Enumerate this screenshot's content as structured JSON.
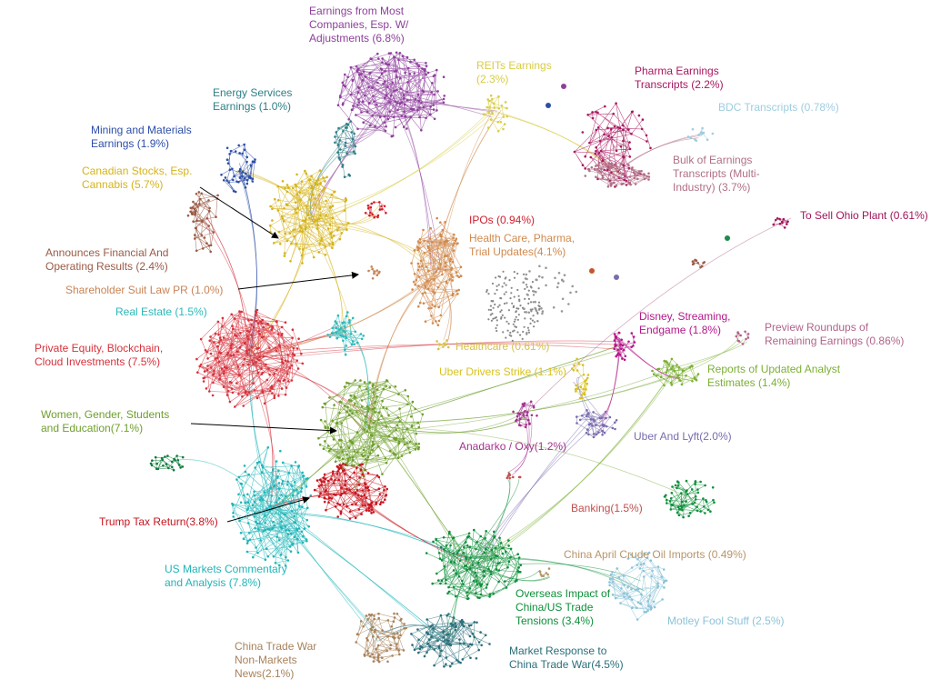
{
  "clusters": [
    {
      "id": "earnings-most",
      "label": [
        "Earnings from Most",
        "Companies, Esp. W/",
        "Adjustments (6.8%)"
      ],
      "color": "#8e3f9c"
    },
    {
      "id": "reits",
      "label": [
        "REITs Earnings",
        "(2.3%)"
      ],
      "color": "#d9cc45"
    },
    {
      "id": "pharma-earnings",
      "label": [
        "Pharma Earnings",
        "Transcripts (2.2%)"
      ],
      "color": "#a8175f"
    },
    {
      "id": "bdc",
      "label": [
        "BDC Transcripts (0.78%)"
      ],
      "color": "#9fcde0"
    },
    {
      "id": "energy",
      "label": [
        "Energy Services",
        "Earnings (1.0%)"
      ],
      "color": "#2f7f86"
    },
    {
      "id": "mining",
      "label": [
        "Mining and Materials",
        "Earnings (1.9%)"
      ],
      "color": "#2d4ea8"
    },
    {
      "id": "bulk-transcripts",
      "label": [
        "Bulk of Earnings",
        "Transcripts (Multi-",
        "Industry) (3.7%)"
      ],
      "color": "#b06f86"
    },
    {
      "id": "canadian",
      "label": [
        "Canadian Stocks, Esp.",
        "Cannabis (5.7%)"
      ],
      "color": "#d6b31a"
    },
    {
      "id": "ohio",
      "label": [
        "To Sell Ohio Plant (0.61%)"
      ],
      "color": "#a0155a"
    },
    {
      "id": "ipos",
      "label": [
        "IPOs (0.94%)"
      ],
      "color": "#d01e2c"
    },
    {
      "id": "health-care",
      "label": [
        "Health Care, Pharma,",
        "Trial Updates(4.1%)"
      ],
      "color": "#d08a4e"
    },
    {
      "id": "announces",
      "label": [
        "Announces Financial And",
        "Operating Results (2.4%)"
      ],
      "color": "#9b5a45"
    },
    {
      "id": "shareholder",
      "label": [
        "Shareholder Suit Law PR (1.0%)"
      ],
      "color": "#c98456"
    },
    {
      "id": "real-estate",
      "label": [
        "Real Estate (1.5%)"
      ],
      "color": "#2cb8b8"
    },
    {
      "id": "healthcare",
      "label": [
        "Healthcare (0.61%)"
      ],
      "color": "#d6c24a"
    },
    {
      "id": "disney",
      "label": [
        "Disney, Streaming,",
        "Endgame (1.8%)"
      ],
      "color": "#b5178a"
    },
    {
      "id": "preview",
      "label": [
        "Preview Roundups of",
        "Remaining Earnings (0.86%)"
      ],
      "color": "#b0648a"
    },
    {
      "id": "private-equity",
      "label": [
        "Private Equity, Blockchain,",
        "Cloud Investments (7.5%)"
      ],
      "color": "#d6323c"
    },
    {
      "id": "uber-drivers",
      "label": [
        "Uber Drivers Strike (1.1%)"
      ],
      "color": "#d9c21e"
    },
    {
      "id": "analyst",
      "label": [
        "Reports of Updated Analyst",
        "Estimates (1.4%)"
      ],
      "color": "#7cb035"
    },
    {
      "id": "women",
      "label": [
        "Women, Gender, Students",
        "and Education(7.1%)"
      ],
      "color": "#6e9f2b"
    },
    {
      "id": "uber-lyft",
      "label": [
        "Uber And Lyft(2.0%)"
      ],
      "color": "#7a6cae"
    },
    {
      "id": "anadarko",
      "label": [
        "Anadarko / Oxy(1.2%)"
      ],
      "color": "#a2328f"
    },
    {
      "id": "banking",
      "label": [
        "Banking(1.5%)"
      ],
      "color": "#c0504d"
    },
    {
      "id": "trump-tax",
      "label": [
        "Trump Tax Return(3.8%)"
      ],
      "color": "#c8141e"
    },
    {
      "id": "china-crude",
      "label": [
        "China April Crude Oil Imports  (0.49%)"
      ],
      "color": "#b8956a"
    },
    {
      "id": "us-markets",
      "label": [
        "US Markets Commentary",
        "and Analysis (7.8%)"
      ],
      "color": "#1fb5b8"
    },
    {
      "id": "overseas",
      "label": [
        "Overseas Impact of",
        "China/US Trade",
        "Tensions  (3.4%)"
      ],
      "color": "#0d8f3a"
    },
    {
      "id": "motley",
      "label": [
        "Motley Fool Stuff (2.5%)"
      ],
      "color": "#8cc3d8"
    },
    {
      "id": "china-trade-war",
      "label": [
        "China Trade War",
        "Non-Markets",
        "News(2.1%)"
      ],
      "color": "#a8825a"
    },
    {
      "id": "market-response",
      "label": [
        "Market Response to",
        "China Trade War(4.5%)"
      ],
      "color": "#2a6f7a"
    }
  ]
}
